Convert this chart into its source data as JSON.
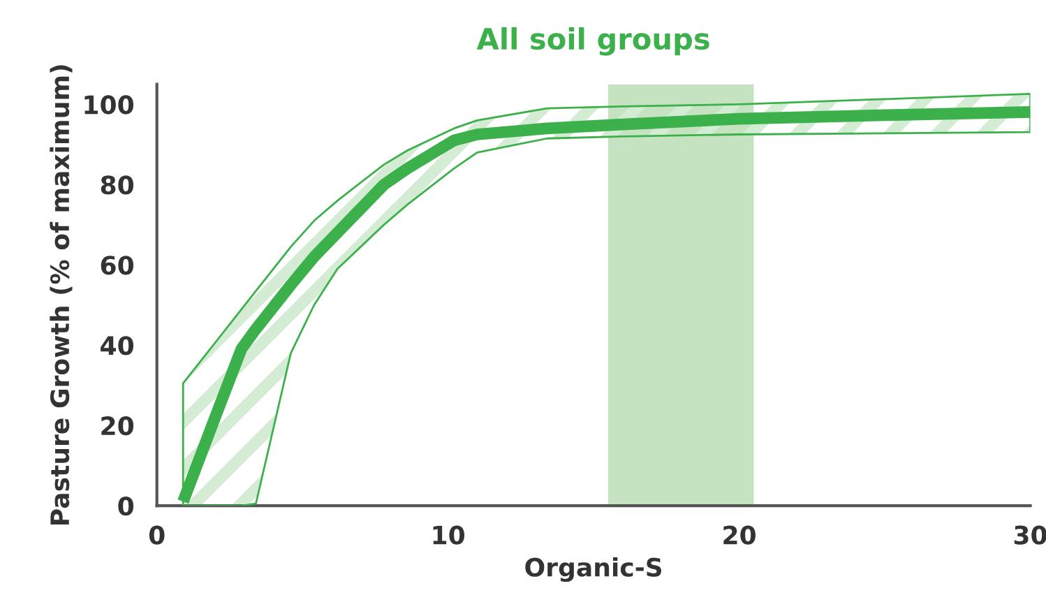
{
  "chart_data": {
    "type": "line",
    "title": "All soil groups",
    "xlabel": "Organic-S",
    "ylabel": "Pasture Growth (% of maximum)",
    "series": [
      {
        "color": "#3cb04a",
        "x": [
          0.9,
          2,
          2.9,
          3.4,
          4.6,
          5.4,
          6.2,
          7.8,
          8.6,
          10.2,
          11,
          13.4,
          16,
          20,
          25,
          30
        ],
        "values": [
          1,
          22,
          39,
          44,
          55,
          62,
          68,
          80,
          84,
          91,
          92.5,
          94,
          95,
          96.4,
          97.3,
          98.1
        ],
        "lower": [
          0,
          0,
          0,
          0.5,
          38,
          50,
          59,
          70,
          75,
          84,
          88,
          91.5,
          92,
          92.5,
          92.8,
          93.1
        ],
        "upper": [
          30.5,
          40.6,
          48.9,
          53.5,
          64.5,
          71,
          76,
          85,
          88.5,
          94,
          96,
          99,
          99.5,
          100,
          101.3,
          102.6
        ]
      }
    ],
    "bands": [
      {
        "axis": "x",
        "from": 15.5,
        "to": 20.5,
        "color": "#c5e3c0"
      }
    ],
    "xlim": [
      0,
      30
    ],
    "ylim": [
      0,
      105
    ],
    "xticks": [
      0,
      10,
      20,
      30
    ],
    "yticks": [
      0,
      20,
      40,
      60,
      80,
      100
    ],
    "grid": false,
    "legend": false
  }
}
